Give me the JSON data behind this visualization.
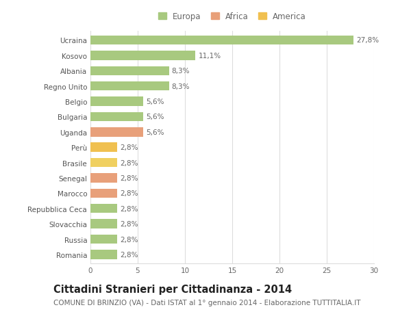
{
  "categories": [
    "Romania",
    "Russia",
    "Slovacchia",
    "Repubblica Ceca",
    "Marocco",
    "Senegal",
    "Brasile",
    "Perù",
    "Uganda",
    "Bulgaria",
    "Belgio",
    "Regno Unito",
    "Albania",
    "Kosovo",
    "Ucraina"
  ],
  "values": [
    2.8,
    2.8,
    2.8,
    2.8,
    2.8,
    2.8,
    2.8,
    2.8,
    5.6,
    5.6,
    5.6,
    8.3,
    8.3,
    11.1,
    27.8
  ],
  "labels": [
    "2,8%",
    "2,8%",
    "2,8%",
    "2,8%",
    "2,8%",
    "2,8%",
    "2,8%",
    "2,8%",
    "5,6%",
    "5,6%",
    "5,6%",
    "8,3%",
    "8,3%",
    "11,1%",
    "27,8%"
  ],
  "colors": [
    "#a8c97f",
    "#a8c97f",
    "#a8c97f",
    "#a8c97f",
    "#e8a07a",
    "#e8a07a",
    "#f0d060",
    "#f0c050",
    "#e8a07a",
    "#a8c97f",
    "#a8c97f",
    "#a8c97f",
    "#a8c97f",
    "#a8c97f",
    "#a8c97f"
  ],
  "legend_labels": [
    "Europa",
    "Africa",
    "America"
  ],
  "legend_colors": [
    "#a8c97f",
    "#e8a07a",
    "#f0c050"
  ],
  "title": "Cittadini Stranieri per Cittadinanza - 2014",
  "subtitle": "COMUNE DI BRINZIO (VA) - Dati ISTAT al 1° gennaio 2014 - Elaborazione TUTTITALIA.IT",
  "xlim": [
    0,
    30
  ],
  "xticks": [
    0,
    5,
    10,
    15,
    20,
    25,
    30
  ],
  "background_color": "#ffffff",
  "grid_color": "#dddddd",
  "bar_height": 0.6,
  "title_fontsize": 10.5,
  "subtitle_fontsize": 7.5,
  "label_fontsize": 7.5,
  "tick_fontsize": 7.5,
  "legend_fontsize": 8.5
}
